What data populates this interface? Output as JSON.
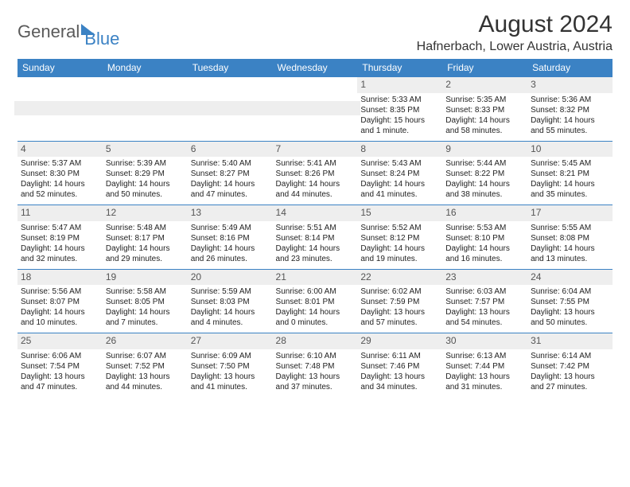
{
  "logo": {
    "part1": "General",
    "part2": "Blue"
  },
  "title": "August 2024",
  "location": "Hafnerbach, Lower Austria, Austria",
  "colors": {
    "accent": "#3b82c4",
    "header_bg": "#3b82c4",
    "daynum_bg": "#eeeeee",
    "text": "#222222",
    "bg": "#ffffff"
  },
  "day_headers": [
    "Sunday",
    "Monday",
    "Tuesday",
    "Wednesday",
    "Thursday",
    "Friday",
    "Saturday"
  ],
  "weeks": [
    [
      null,
      null,
      null,
      null,
      {
        "n": "1",
        "sr": "Sunrise: 5:33 AM",
        "ss": "Sunset: 8:35 PM",
        "d1": "Daylight: 15 hours",
        "d2": "and 1 minute."
      },
      {
        "n": "2",
        "sr": "Sunrise: 5:35 AM",
        "ss": "Sunset: 8:33 PM",
        "d1": "Daylight: 14 hours",
        "d2": "and 58 minutes."
      },
      {
        "n": "3",
        "sr": "Sunrise: 5:36 AM",
        "ss": "Sunset: 8:32 PM",
        "d1": "Daylight: 14 hours",
        "d2": "and 55 minutes."
      }
    ],
    [
      {
        "n": "4",
        "sr": "Sunrise: 5:37 AM",
        "ss": "Sunset: 8:30 PM",
        "d1": "Daylight: 14 hours",
        "d2": "and 52 minutes."
      },
      {
        "n": "5",
        "sr": "Sunrise: 5:39 AM",
        "ss": "Sunset: 8:29 PM",
        "d1": "Daylight: 14 hours",
        "d2": "and 50 minutes."
      },
      {
        "n": "6",
        "sr": "Sunrise: 5:40 AM",
        "ss": "Sunset: 8:27 PM",
        "d1": "Daylight: 14 hours",
        "d2": "and 47 minutes."
      },
      {
        "n": "7",
        "sr": "Sunrise: 5:41 AM",
        "ss": "Sunset: 8:26 PM",
        "d1": "Daylight: 14 hours",
        "d2": "and 44 minutes."
      },
      {
        "n": "8",
        "sr": "Sunrise: 5:43 AM",
        "ss": "Sunset: 8:24 PM",
        "d1": "Daylight: 14 hours",
        "d2": "and 41 minutes."
      },
      {
        "n": "9",
        "sr": "Sunrise: 5:44 AM",
        "ss": "Sunset: 8:22 PM",
        "d1": "Daylight: 14 hours",
        "d2": "and 38 minutes."
      },
      {
        "n": "10",
        "sr": "Sunrise: 5:45 AM",
        "ss": "Sunset: 8:21 PM",
        "d1": "Daylight: 14 hours",
        "d2": "and 35 minutes."
      }
    ],
    [
      {
        "n": "11",
        "sr": "Sunrise: 5:47 AM",
        "ss": "Sunset: 8:19 PM",
        "d1": "Daylight: 14 hours",
        "d2": "and 32 minutes."
      },
      {
        "n": "12",
        "sr": "Sunrise: 5:48 AM",
        "ss": "Sunset: 8:17 PM",
        "d1": "Daylight: 14 hours",
        "d2": "and 29 minutes."
      },
      {
        "n": "13",
        "sr": "Sunrise: 5:49 AM",
        "ss": "Sunset: 8:16 PM",
        "d1": "Daylight: 14 hours",
        "d2": "and 26 minutes."
      },
      {
        "n": "14",
        "sr": "Sunrise: 5:51 AM",
        "ss": "Sunset: 8:14 PM",
        "d1": "Daylight: 14 hours",
        "d2": "and 23 minutes."
      },
      {
        "n": "15",
        "sr": "Sunrise: 5:52 AM",
        "ss": "Sunset: 8:12 PM",
        "d1": "Daylight: 14 hours",
        "d2": "and 19 minutes."
      },
      {
        "n": "16",
        "sr": "Sunrise: 5:53 AM",
        "ss": "Sunset: 8:10 PM",
        "d1": "Daylight: 14 hours",
        "d2": "and 16 minutes."
      },
      {
        "n": "17",
        "sr": "Sunrise: 5:55 AM",
        "ss": "Sunset: 8:08 PM",
        "d1": "Daylight: 14 hours",
        "d2": "and 13 minutes."
      }
    ],
    [
      {
        "n": "18",
        "sr": "Sunrise: 5:56 AM",
        "ss": "Sunset: 8:07 PM",
        "d1": "Daylight: 14 hours",
        "d2": "and 10 minutes."
      },
      {
        "n": "19",
        "sr": "Sunrise: 5:58 AM",
        "ss": "Sunset: 8:05 PM",
        "d1": "Daylight: 14 hours",
        "d2": "and 7 minutes."
      },
      {
        "n": "20",
        "sr": "Sunrise: 5:59 AM",
        "ss": "Sunset: 8:03 PM",
        "d1": "Daylight: 14 hours",
        "d2": "and 4 minutes."
      },
      {
        "n": "21",
        "sr": "Sunrise: 6:00 AM",
        "ss": "Sunset: 8:01 PM",
        "d1": "Daylight: 14 hours",
        "d2": "and 0 minutes."
      },
      {
        "n": "22",
        "sr": "Sunrise: 6:02 AM",
        "ss": "Sunset: 7:59 PM",
        "d1": "Daylight: 13 hours",
        "d2": "and 57 minutes."
      },
      {
        "n": "23",
        "sr": "Sunrise: 6:03 AM",
        "ss": "Sunset: 7:57 PM",
        "d1": "Daylight: 13 hours",
        "d2": "and 54 minutes."
      },
      {
        "n": "24",
        "sr": "Sunrise: 6:04 AM",
        "ss": "Sunset: 7:55 PM",
        "d1": "Daylight: 13 hours",
        "d2": "and 50 minutes."
      }
    ],
    [
      {
        "n": "25",
        "sr": "Sunrise: 6:06 AM",
        "ss": "Sunset: 7:54 PM",
        "d1": "Daylight: 13 hours",
        "d2": "and 47 minutes."
      },
      {
        "n": "26",
        "sr": "Sunrise: 6:07 AM",
        "ss": "Sunset: 7:52 PM",
        "d1": "Daylight: 13 hours",
        "d2": "and 44 minutes."
      },
      {
        "n": "27",
        "sr": "Sunrise: 6:09 AM",
        "ss": "Sunset: 7:50 PM",
        "d1": "Daylight: 13 hours",
        "d2": "and 41 minutes."
      },
      {
        "n": "28",
        "sr": "Sunrise: 6:10 AM",
        "ss": "Sunset: 7:48 PM",
        "d1": "Daylight: 13 hours",
        "d2": "and 37 minutes."
      },
      {
        "n": "29",
        "sr": "Sunrise: 6:11 AM",
        "ss": "Sunset: 7:46 PM",
        "d1": "Daylight: 13 hours",
        "d2": "and 34 minutes."
      },
      {
        "n": "30",
        "sr": "Sunrise: 6:13 AM",
        "ss": "Sunset: 7:44 PM",
        "d1": "Daylight: 13 hours",
        "d2": "and 31 minutes."
      },
      {
        "n": "31",
        "sr": "Sunrise: 6:14 AM",
        "ss": "Sunset: 7:42 PM",
        "d1": "Daylight: 13 hours",
        "d2": "and 27 minutes."
      }
    ]
  ]
}
